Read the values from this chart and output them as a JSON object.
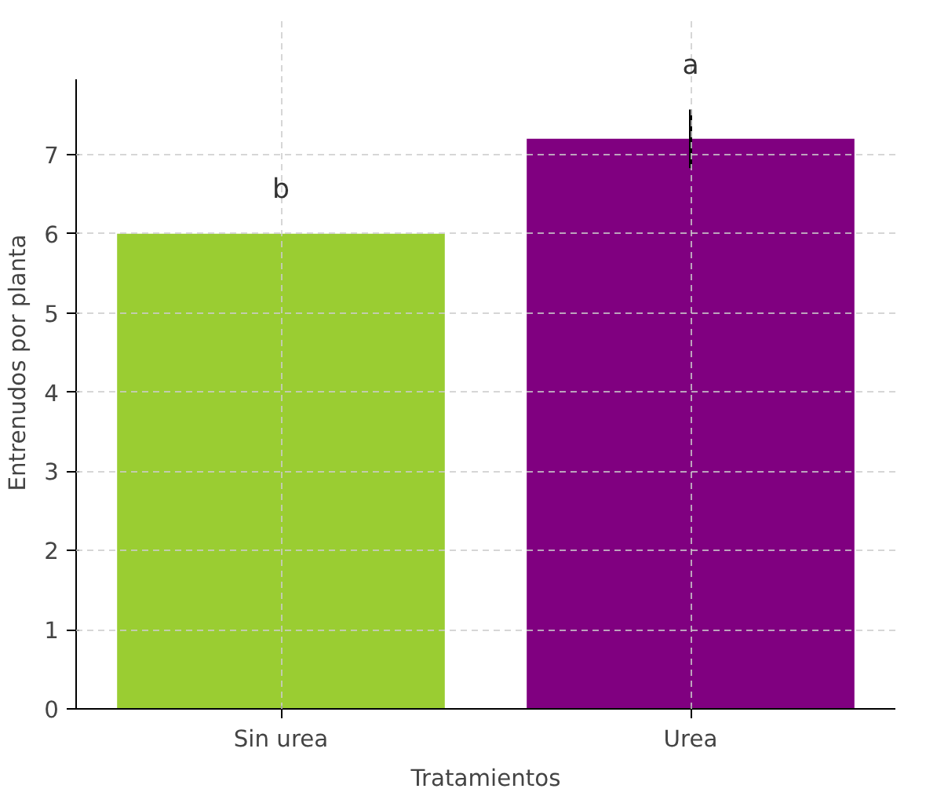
{
  "chart_data": {
    "type": "bar",
    "xlabel": "Tratamientos",
    "ylabel": "Entrenudos por planta",
    "categories": [
      "Sin urea",
      "Urea"
    ],
    "values": [
      6.0,
      7.2
    ],
    "colors": [
      "#9acd32",
      "#800080"
    ],
    "errors": [
      null,
      0.37
    ],
    "ylim": [
      0,
      7.95
    ],
    "yticks": [
      0,
      1,
      2,
      3,
      4,
      5,
      6,
      7
    ],
    "grid": true,
    "annotations": [
      "b",
      "a"
    ]
  }
}
